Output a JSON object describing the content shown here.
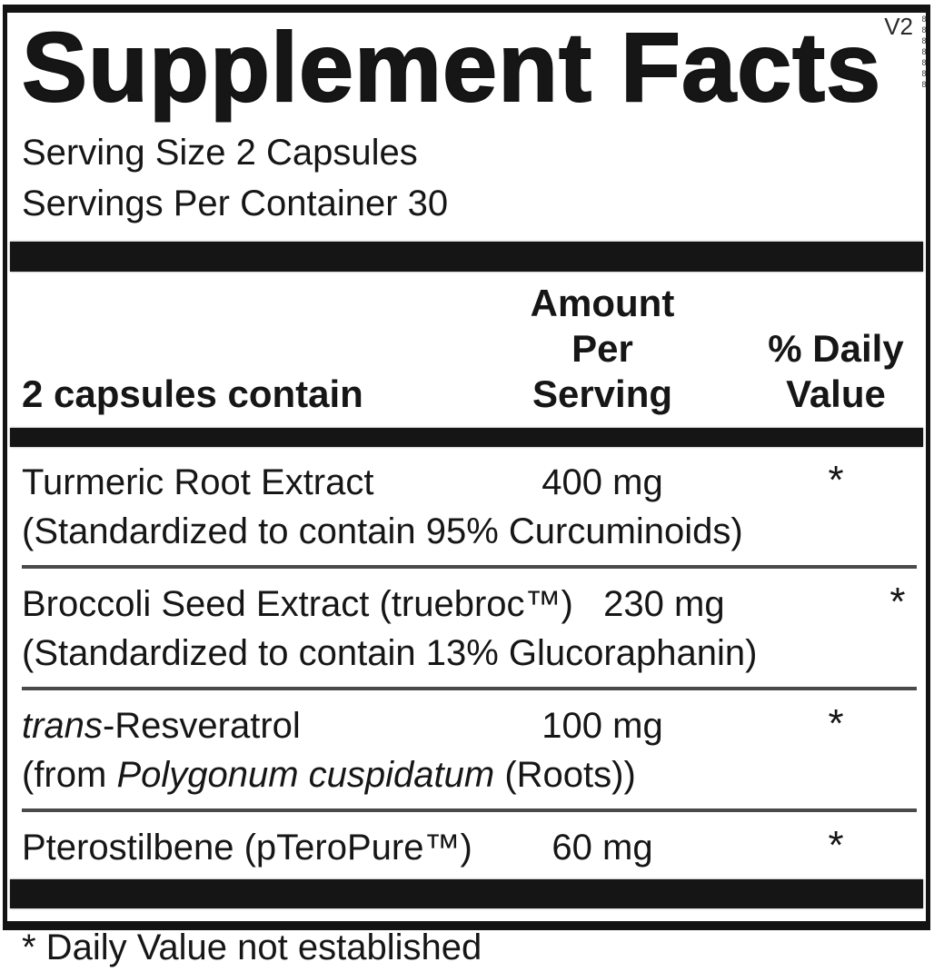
{
  "label": {
    "title": "Supplement Facts",
    "version": "V2",
    "edge_marks": "8888888",
    "serving_info": {
      "serving_size": "Serving Size 2 Capsules",
      "servings_per_container": "Servings Per Container 30"
    },
    "table": {
      "header": {
        "contains": "2 capsules contain",
        "amount_per_serving": "Amount Per\nServing",
        "percent_daily_value": "% Daily\nValue"
      },
      "rows": [
        {
          "name": "Turmeric Root Extract",
          "detail": "(Standardized to contain 95% Curcuminoids)",
          "amount": "400 mg",
          "daily_value": "*"
        },
        {
          "name": "Broccoli Seed Extract (truebroc™)",
          "detail": "(Standardized to contain 13% Glucoraphanin)",
          "amount": "230 mg",
          "daily_value": "*"
        },
        {
          "name_italic": "trans",
          "name_rest": "-Resveratrol",
          "detail_pre": "(from ",
          "detail_italic": "Polygonum cuspidatum",
          "detail_post": " (Roots))",
          "amount": "100 mg",
          "daily_value": "*"
        },
        {
          "name": "Pterostilbene (pTeroPure™)",
          "amount": "60 mg",
          "daily_value": "*"
        }
      ]
    },
    "footnote": "* Daily Value not established",
    "colors": {
      "ink": "#151515",
      "background": "#ffffff",
      "divider": "#4a4a4a"
    }
  }
}
